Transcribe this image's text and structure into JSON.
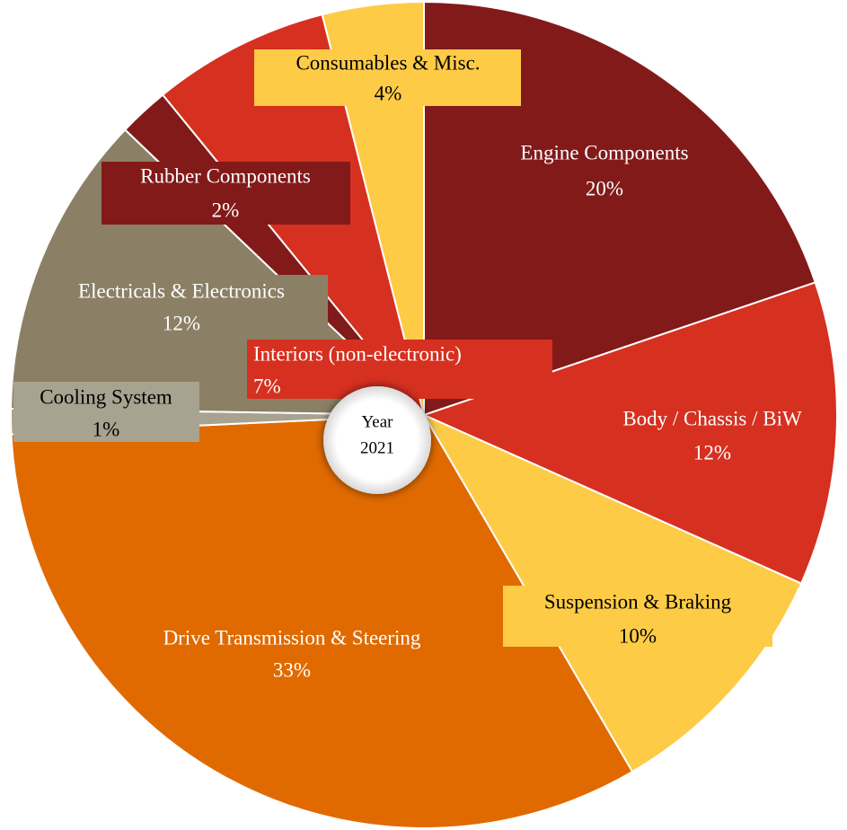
{
  "chart_data": {
    "type": "pie",
    "categories": [
      "Engine Components",
      "Body / Chassis / BiW",
      "Suspension & Braking",
      "Drive Transmission & Steering",
      "Cooling System",
      "Electricals & Electronics",
      "Rubber Components",
      "Interiors (non-electronic)",
      "Consumables & Misc."
    ],
    "values": [
      20,
      12,
      10,
      33,
      1,
      12,
      2,
      7,
      4
    ],
    "value_labels": [
      "20%",
      "12%",
      "10%",
      "33%",
      "1%",
      "12%",
      "2%",
      "7%",
      "4%"
    ],
    "colors": [
      "#821a1a",
      "#d63020",
      "#fecb47",
      "#e06a00",
      "#a8a290",
      "#8b8066",
      "#821a1a",
      "#d63020",
      "#fecb47"
    ],
    "center_label": [
      "Year",
      "2021"
    ]
  }
}
